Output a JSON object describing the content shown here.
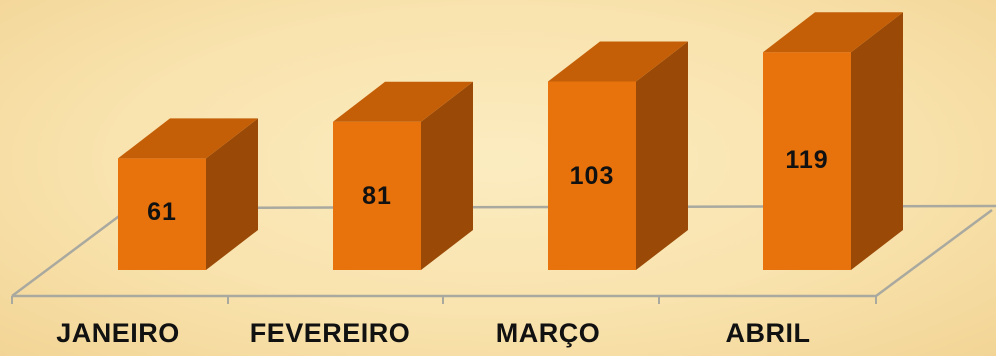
{
  "chart_data": {
    "type": "bar",
    "categories": [
      "JANEIRO",
      "FEVEREIRO",
      "MARÇO",
      "ABRIL"
    ],
    "values": [
      61,
      81,
      103,
      119
    ],
    "value_labels": [
      "61",
      "81",
      "103",
      "119"
    ],
    "title": "",
    "xlabel": "",
    "ylabel": "",
    "ylim": [
      0,
      130
    ],
    "grid": false,
    "legend": "none",
    "style": "3d-column"
  },
  "colors": {
    "bar_front": "#e8720c",
    "bar_side": "#9a4a06",
    "bar_top": "#c45f08",
    "floor_line": "#a9a9a0",
    "background": "#f9e3ae"
  }
}
